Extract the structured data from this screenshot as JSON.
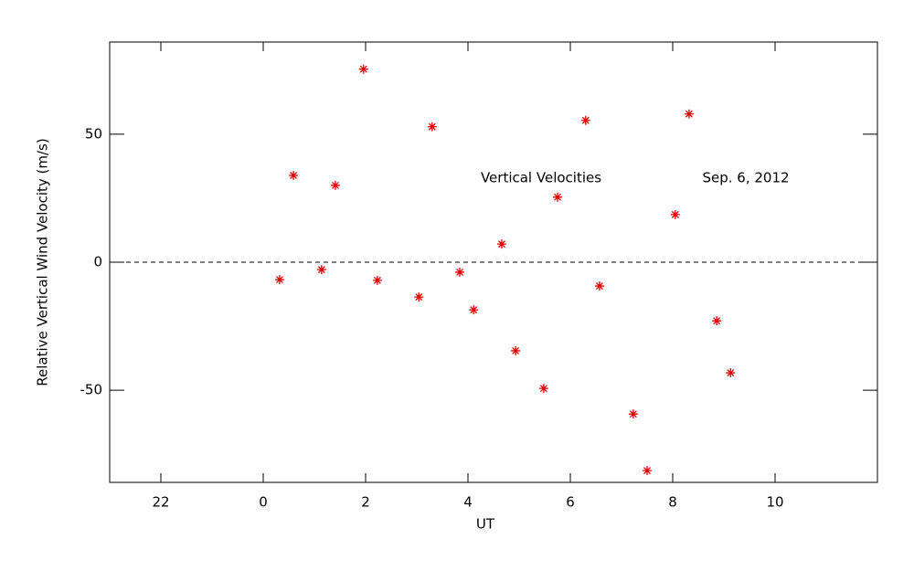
{
  "chart_data": {
    "type": "scatter",
    "xlabel": "UT",
    "ylabel": "Relative Vertical Wind Velocity (m/s)",
    "annotations": [
      "Vertical Velocities",
      "Sep. 6, 2012"
    ],
    "x": [
      0.32,
      0.59,
      1.14,
      1.41,
      1.96,
      2.23,
      3.04,
      3.3,
      3.84,
      4.11,
      4.66,
      4.93,
      5.48,
      5.75,
      6.3,
      6.57,
      7.23,
      7.5,
      8.05,
      8.32,
      8.86,
      9.13
    ],
    "series": [
      {
        "color": "#e00000",
        "values": [
          -6.8,
          33.9,
          -2.9,
          30,
          75.4,
          -7.1,
          -13.6,
          52.9,
          -3.9,
          -18.6,
          7.1,
          -34.6,
          -49.3,
          25.4,
          55.4,
          -9.3,
          -59.3,
          -81.4,
          18.6,
          57.9,
          -22.9,
          -43.2
        ]
      }
    ],
    "xlim": [
      -3,
      12
    ],
    "ylim": [
      -86,
      86
    ],
    "xticks": [
      {
        "value": -2,
        "label": "22"
      },
      0,
      2,
      4,
      6,
      8,
      10
    ],
    "yticks": [
      -50,
      0,
      50
    ],
    "reference_line": 0
  }
}
